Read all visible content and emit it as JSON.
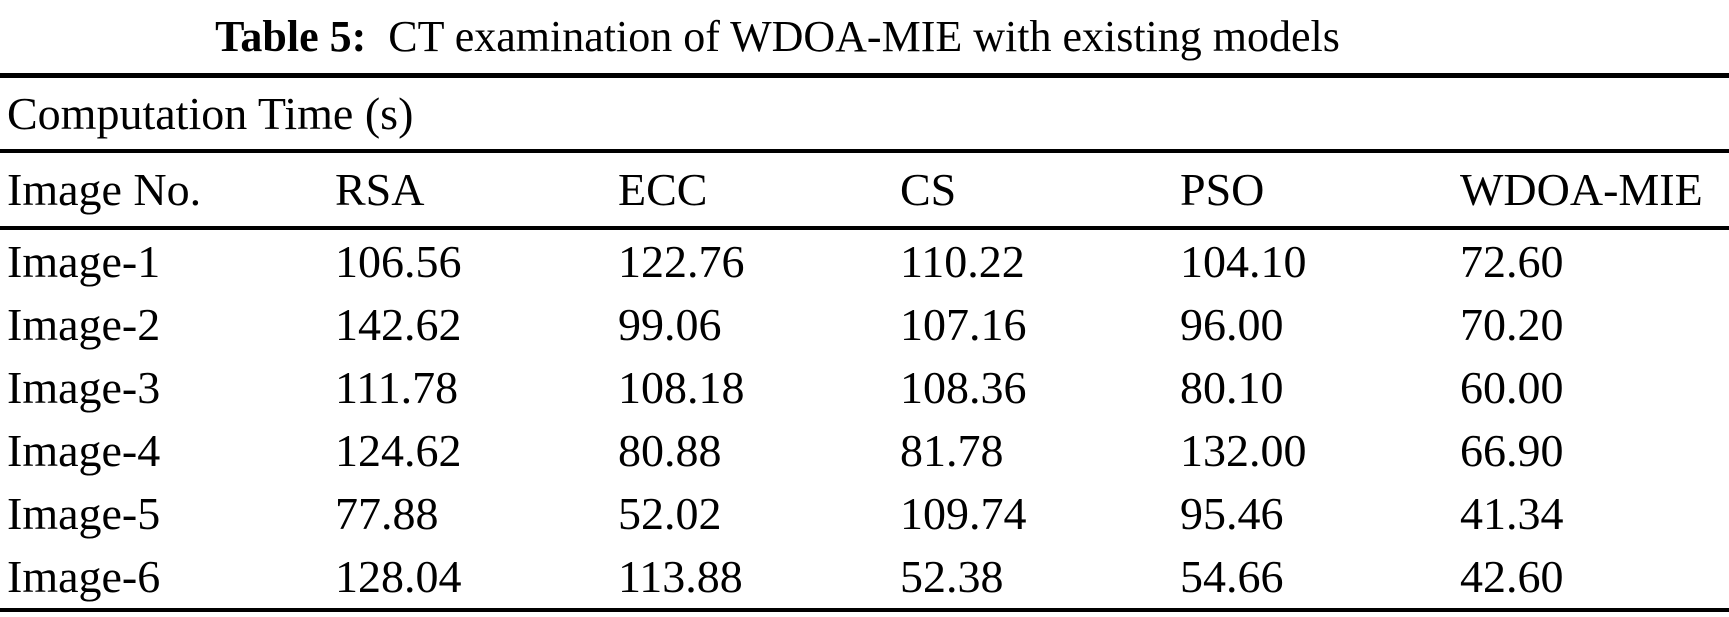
{
  "page": {
    "background": "#ffffff",
    "text_color": "#000000",
    "rule_color": "#000000"
  },
  "caption": {
    "label": "Table 5:",
    "text": "CT examination of WDOA-MIE with existing models"
  },
  "table": {
    "section_header": "Computation Time (s)",
    "columns": [
      "Image No.",
      "RSA",
      "ECC",
      "CS",
      "PSO",
      "WDOA-MIE"
    ],
    "rows": [
      {
        "label": "Image-1",
        "values": [
          "106.56",
          "122.76",
          "110.22",
          "104.10",
          "72.60"
        ]
      },
      {
        "label": "Image-2",
        "values": [
          "142.62",
          "99.06",
          "107.16",
          "96.00",
          "70.20"
        ]
      },
      {
        "label": "Image-3",
        "values": [
          "111.78",
          "108.18",
          "108.36",
          "80.10",
          "60.00"
        ]
      },
      {
        "label": "Image-4",
        "values": [
          "124.62",
          "80.88",
          "81.78",
          "132.00",
          "66.90"
        ]
      },
      {
        "label": "Image-5",
        "values": [
          "77.88",
          "52.02",
          "109.74",
          "95.46",
          "41.34"
        ]
      },
      {
        "label": "Image-6",
        "values": [
          "128.04",
          "113.88",
          "52.38",
          "54.66",
          "42.60"
        ]
      }
    ]
  }
}
